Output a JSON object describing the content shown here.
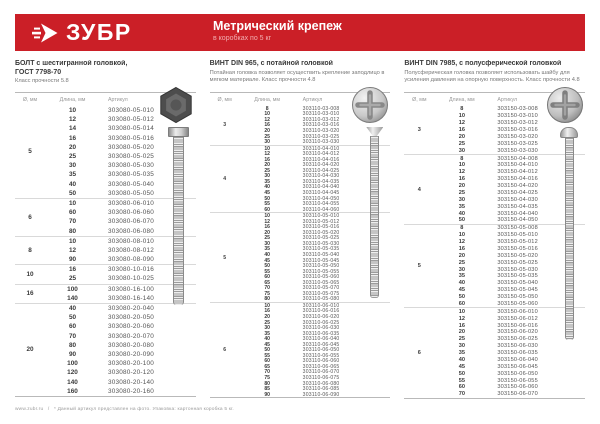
{
  "banner": {
    "logo_text": "ЗУБР",
    "title": "Метрический крепеж",
    "subtitle": "в коробках по 5 кг",
    "color": "#cb1f27"
  },
  "icons": {
    "logo": "zubr-arrow-icon",
    "table1_photo_top": "hex-head-top",
    "table1_photo_side": "hex-bolt-side",
    "table2_photo_top": "phillips-countersunk-top",
    "table2_photo_side": "countersunk-screw-side",
    "table3_photo_top": "phillips-pan-top",
    "table3_photo_side": "pan-head-screw-side"
  },
  "tables": [
    {
      "title": "БОЛТ с шестигранной головкой,\nГОСТ 7798-70",
      "subtitle": "Класс прочности 5.8",
      "col_headers": [
        "Ø, мм",
        "Длина, мм",
        "Артикул"
      ],
      "groups": [
        {
          "diameter": "5",
          "rows": [
            [
              "10",
              "303080-05-010"
            ],
            [
              "12",
              "303080-05-012"
            ],
            [
              "14",
              "303080-05-014"
            ],
            [
              "16",
              "303080-05-016"
            ],
            [
              "20",
              "303080-05-020"
            ],
            [
              "25",
              "303080-05-025"
            ],
            [
              "30",
              "303080-05-030"
            ],
            [
              "35",
              "303080-05-035"
            ],
            [
              "40",
              "303080-05-040"
            ],
            [
              "50",
              "303080-05-050"
            ]
          ]
        },
        {
          "diameter": "6",
          "rows": [
            [
              "10",
              "303080-06-010"
            ],
            [
              "60",
              "303080-06-060"
            ],
            [
              "70",
              "303080-06-070"
            ],
            [
              "80",
              "303080-06-080"
            ]
          ]
        },
        {
          "diameter": "8",
          "rows": [
            [
              "10",
              "303080-08-010"
            ],
            [
              "12",
              "303080-08-012"
            ],
            [
              "90",
              "303080-08-090"
            ]
          ]
        },
        {
          "diameter": "10",
          "rows": [
            [
              "16",
              "303080-10-016"
            ],
            [
              "25",
              "303080-10-025"
            ]
          ]
        },
        {
          "diameter": "16",
          "rows": [
            [
              "100",
              "303080-16-100"
            ],
            [
              "140",
              "303080-16-140"
            ]
          ]
        },
        {
          "diameter": "20",
          "rows": [
            [
              "40",
              "303080-20-040"
            ],
            [
              "50",
              "303080-20-050"
            ],
            [
              "60",
              "303080-20-060"
            ],
            [
              "70",
              "303080-20-070"
            ],
            [
              "80",
              "303080-20-080"
            ],
            [
              "90",
              "303080-20-090"
            ],
            [
              "100",
              "303080-20-100"
            ],
            [
              "120",
              "303080-20-120"
            ],
            [
              "140",
              "303080-20-140"
            ],
            [
              "160",
              "303080-20-160"
            ]
          ]
        }
      ]
    },
    {
      "title": "ВИНТ DIN 965, с потайной головкой",
      "subtitle": "Потайная головка позволяет осуществить крепление заподлицо в мягком материале. Класс прочности 4.8",
      "col_headers": [
        "Ø, мм",
        "Длина, мм",
        "Артикул"
      ],
      "groups": [
        {
          "diameter": "3",
          "rows": [
            [
              "8",
              "303110-03-008"
            ],
            [
              "10",
              "303110-03-010"
            ],
            [
              "12",
              "303110-03-012"
            ],
            [
              "16",
              "303110-03-016"
            ],
            [
              "20",
              "303110-03-020"
            ],
            [
              "25",
              "303110-03-025"
            ],
            [
              "30",
              "303110-03-030"
            ]
          ]
        },
        {
          "diameter": "4",
          "rows": [
            [
              "10",
              "303110-04-010"
            ],
            [
              "12",
              "303110-04-012"
            ],
            [
              "16",
              "303110-04-016"
            ],
            [
              "20",
              "303110-04-020"
            ],
            [
              "25",
              "303110-04-025"
            ],
            [
              "30",
              "303110-04-030"
            ],
            [
              "35",
              "303110-04-035"
            ],
            [
              "40",
              "303110-04-040"
            ],
            [
              "45",
              "303110-04-045"
            ],
            [
              "50",
              "303110-04-050"
            ],
            [
              "55",
              "303110-04-055"
            ],
            [
              "60",
              "303110-04-060"
            ]
          ]
        },
        {
          "diameter": "5",
          "rows": [
            [
              "10",
              "303110-05-010"
            ],
            [
              "12",
              "303110-05-012"
            ],
            [
              "16",
              "303110-05-016"
            ],
            [
              "20",
              "303110-05-020"
            ],
            [
              "25",
              "303110-05-025"
            ],
            [
              "30",
              "303110-05-030"
            ],
            [
              "35",
              "303110-05-035"
            ],
            [
              "40",
              "303110-05-040"
            ],
            [
              "45",
              "303110-05-045"
            ],
            [
              "50",
              "303110-05-050"
            ],
            [
              "55",
              "303110-05-055"
            ],
            [
              "60",
              "303110-05-060"
            ],
            [
              "65",
              "303110-05-065"
            ],
            [
              "70",
              "303110-05-070"
            ],
            [
              "75",
              "303110-05-075"
            ],
            [
              "80",
              "303110-05-080"
            ]
          ]
        },
        {
          "diameter": "6",
          "rows": [
            [
              "10",
              "303110-06-010"
            ],
            [
              "16",
              "303110-06-016"
            ],
            [
              "20",
              "303110-06-020"
            ],
            [
              "25",
              "303110-06-025"
            ],
            [
              "30",
              "303110-06-030"
            ],
            [
              "35",
              "303110-06-035"
            ],
            [
              "40",
              "303110-06-040"
            ],
            [
              "45",
              "303110-06-045"
            ],
            [
              "50",
              "303110-06-050"
            ],
            [
              "55",
              "303110-06-055"
            ],
            [
              "60",
              "303110-06-060"
            ],
            [
              "65",
              "303110-06-065"
            ],
            [
              "70",
              "303110-06-070"
            ],
            [
              "75",
              "303110-06-075"
            ],
            [
              "80",
              "303110-06-080"
            ],
            [
              "85",
              "303110-06-085"
            ],
            [
              "90",
              "303110-06-090"
            ]
          ]
        }
      ]
    },
    {
      "title": "ВИНТ DIN 7985, с полусферической головкой",
      "subtitle": "Полусферическая головка позволяет использовать шайбу для усиления давления на опорную поверхность. Класс прочности 4.8",
      "col_headers": [
        "Ø, мм",
        "Длина, мм",
        "Артикул"
      ],
      "groups": [
        {
          "diameter": "3",
          "rows": [
            [
              "8",
              "303150-03-008"
            ],
            [
              "10",
              "303150-03-010"
            ],
            [
              "12",
              "303150-03-012"
            ],
            [
              "16",
              "303150-03-016"
            ],
            [
              "20",
              "303150-03-020"
            ],
            [
              "25",
              "303150-03-025"
            ],
            [
              "30",
              "303150-03-030"
            ]
          ]
        },
        {
          "diameter": "4",
          "rows": [
            [
              "8",
              "303150-04-008"
            ],
            [
              "10",
              "303150-04-010"
            ],
            [
              "12",
              "303150-04-012"
            ],
            [
              "16",
              "303150-04-016"
            ],
            [
              "20",
              "303150-04-020"
            ],
            [
              "25",
              "303150-04-025"
            ],
            [
              "30",
              "303150-04-030"
            ],
            [
              "35",
              "303150-04-035"
            ],
            [
              "40",
              "303150-04-040"
            ],
            [
              "50",
              "303150-04-050"
            ]
          ]
        },
        {
          "diameter": "5",
          "rows": [
            [
              "8",
              "303150-05-008"
            ],
            [
              "10",
              "303150-05-010"
            ],
            [
              "12",
              "303150-05-012"
            ],
            [
              "16",
              "303150-05-016"
            ],
            [
              "20",
              "303150-05-020"
            ],
            [
              "25",
              "303150-05-025"
            ],
            [
              "30",
              "303150-05-030"
            ],
            [
              "35",
              "303150-05-035"
            ],
            [
              "40",
              "303150-05-040"
            ],
            [
              "45",
              "303150-05-045"
            ],
            [
              "50",
              "303150-05-050"
            ],
            [
              "60",
              "303150-05-060"
            ]
          ]
        },
        {
          "diameter": "6",
          "rows": [
            [
              "10",
              "303150-06-010"
            ],
            [
              "12",
              "303150-06-012"
            ],
            [
              "16",
              "303150-06-016"
            ],
            [
              "20",
              "303150-06-020"
            ],
            [
              "25",
              "303150-06-025"
            ],
            [
              "30",
              "303150-06-030"
            ],
            [
              "35",
              "303150-06-035"
            ],
            [
              "40",
              "303150-06-040"
            ],
            [
              "45",
              "303150-06-045"
            ],
            [
              "50",
              "303150-06-050"
            ],
            [
              "55",
              "303150-06-055"
            ],
            [
              "60",
              "303150-06-060"
            ],
            [
              "70",
              "303150-06-070"
            ]
          ]
        }
      ]
    }
  ],
  "page": {
    "footer_site": "www.zubr.ru",
    "footer_sep": "/",
    "footer_note": "* Данный артикул представлен на фото. Упаковка: картонная коробка 5 кг."
  }
}
